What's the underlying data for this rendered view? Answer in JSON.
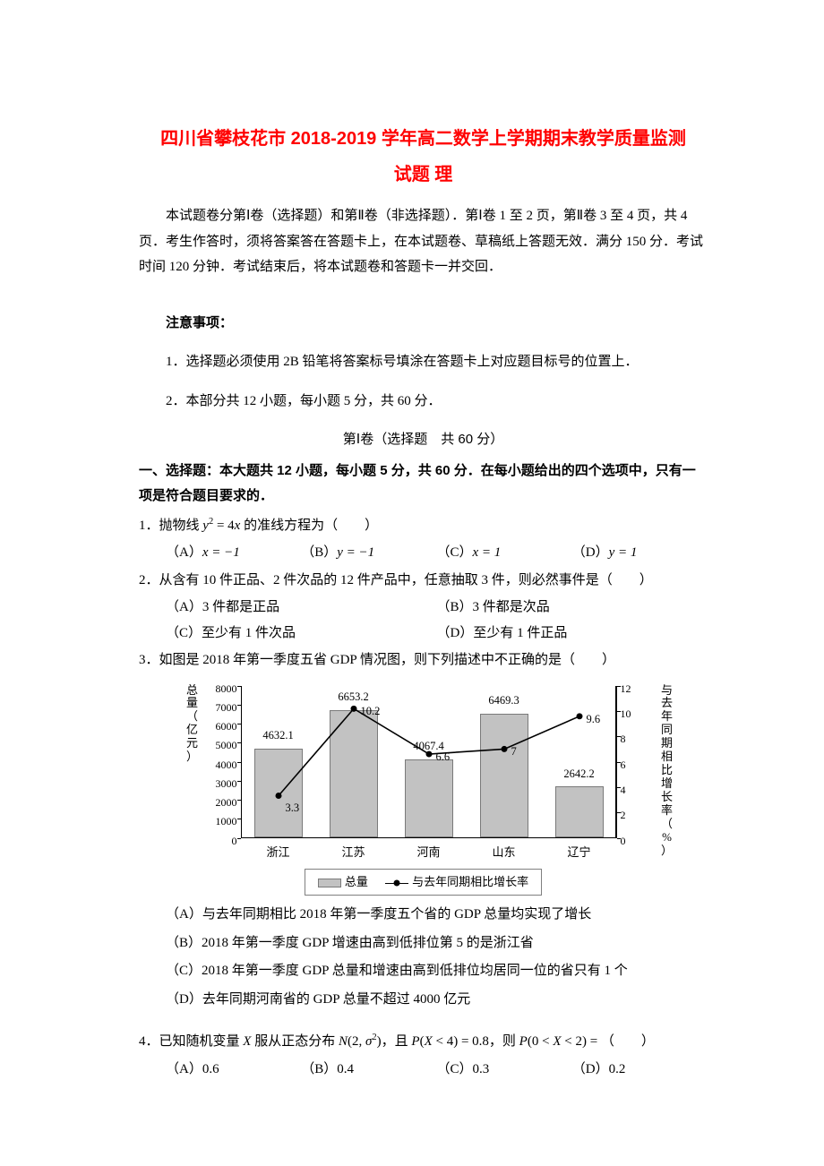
{
  "title_line1": "四川省攀枝花市 2018-2019 学年高二数学上学期期末教学质量监测",
  "title_line2": "试题  理",
  "intro": "本试题卷分第Ⅰ卷（选择题）和第Ⅱ卷（非选择题）．第Ⅰ卷 1 至 2 页，第Ⅱ卷 3 至 4 页，共 4 页．考生作答时，须将答案答在答题卡上，在本试题卷、草稿纸上答题无效．满分 150 分．考试时间 120 分钟．考试结束后，将本试题卷和答题卡一并交回．",
  "notice_head": "注意事项：",
  "notice_1": "1．选择题必须使用 2B 铅笔将答案标号填涂在答题卡上对应题目标号的位置上．",
  "notice_2": "2．本部分共 12 小题，每小题 5 分，共 60 分．",
  "section1": "第Ⅰ卷（选择题　共 60 分）",
  "instruct": "一、选择题：本大题共 12 小题，每小题 5 分，共 60 分．在每小题给出的四个选项中，只有一项是符合题目要求的．",
  "q1": {
    "stem_a": "1．抛物线 ",
    "stem_b": " 的准线方程为（　　）",
    "A": "x = −1",
    "B": "y = −1",
    "C": "x = 1",
    "D": "y = 1"
  },
  "q2": {
    "stem": "2．从含有 10 件正品、2 件次品的 12 件产品中，任意抽取 3 件，则必然事件是（　　）",
    "A": "（A）3 件都是正品",
    "B": "（B）3 件都是次品",
    "C": "（C）至少有 1 件次品",
    "D": "（D）至少有 1 件正品"
  },
  "q3": {
    "stem": "3．如图是 2018 年第一季度五省 GDP 情况图，则下列描述中不正确的是（　　）",
    "A": "（A）与去年同期相比 2018 年第一季度五个省的 GDP 总量均实现了增长",
    "B": "（B）2018 年第一季度 GDP 增速由高到低排位第 5 的是浙江省",
    "C": "（C）2018 年第一季度 GDP 总量和增速由高到低排位均居同一位的省只有 1 个",
    "D": "（D）去年同期河南省的 GDP 总量不超过 4000 亿元"
  },
  "q4": {
    "stem_a": "4．已知随机变量 ",
    "stem_b": " 服从正态分布 ",
    "stem_c": "，且 ",
    "stem_d": "，则 ",
    "stem_e": "（　　）",
    "A": "0.6",
    "B": "0.4",
    "C": "0.3",
    "D": "0.2"
  },
  "chart": {
    "ylabel_left": "总量（亿元）",
    "ylabel_right": "与去年同期相比增长率（%）",
    "left_max": 8000,
    "left_step": 1000,
    "left_ticks": [
      "0",
      "1000",
      "2000",
      "3000",
      "4000",
      "5000",
      "6000",
      "7000",
      "8000"
    ],
    "right_max": 12,
    "right_step": 2,
    "right_ticks": [
      "0",
      "2",
      "4",
      "6",
      "8",
      "10",
      "12"
    ],
    "categories": [
      "浙江",
      "江苏",
      "河南",
      "山东",
      "辽宁"
    ],
    "bar_values": [
      4632.1,
      6653.2,
      4067.4,
      6469.3,
      2642.2
    ],
    "bar_labels": [
      "4632.1",
      "6653.2",
      "4067.4",
      "6469.3",
      "2642.2"
    ],
    "line_values": [
      3.3,
      10.2,
      6.6,
      7,
      9.6
    ],
    "line_labels": [
      "3.3",
      "10.2",
      "6.6",
      "7",
      "9.6"
    ],
    "legend_bar": "总量",
    "legend_line": "与去年同期相比增长率",
    "bar_color": "#c2c2c2",
    "line_color": "#000000"
  }
}
